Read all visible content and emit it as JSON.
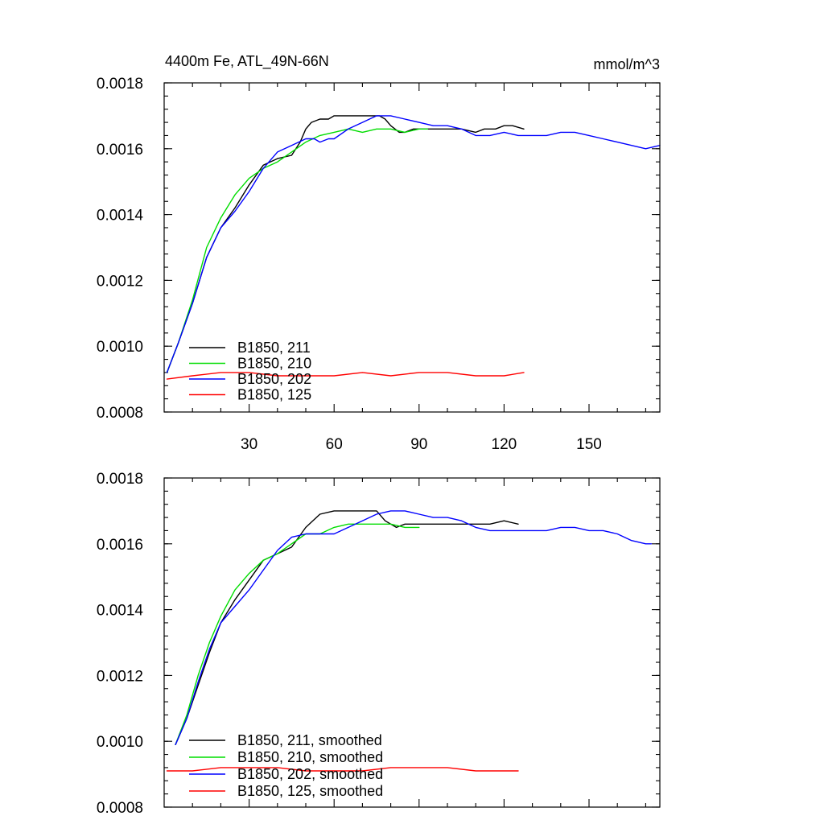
{
  "chart_data": [
    {
      "type": "line",
      "title_left": "4400m Fe, ATL_49N-66N",
      "title_right": "mmol/m^3",
      "xlabel": "",
      "ylabel": "",
      "xlim": [
        0,
        175
      ],
      "ylim": [
        0.0008,
        0.0018
      ],
      "x_ticks": [
        30,
        60,
        90,
        120,
        150
      ],
      "x_tick_labels": [
        "30",
        "60",
        "90",
        "120",
        "150"
      ],
      "y_ticks": [
        0.0008,
        0.001,
        0.0012,
        0.0014,
        0.0016,
        0.0018
      ],
      "y_tick_labels": [
        "0.0008",
        "0.0010",
        "0.0012",
        "0.0014",
        "0.0016",
        "0.0018"
      ],
      "grid": false,
      "legend_position": "bottom-left",
      "series": [
        {
          "name": "B1850, 211",
          "color": "#000000",
          "x": [
            1,
            5,
            10,
            15,
            20,
            25,
            30,
            35,
            40,
            45,
            48,
            50,
            52,
            55,
            58,
            60,
            63,
            66,
            70,
            73,
            76,
            78,
            80,
            83,
            85,
            88,
            90,
            95,
            100,
            105,
            110,
            113,
            117,
            120,
            123,
            127
          ],
          "y": [
            0.00092,
            0.00101,
            0.00113,
            0.00127,
            0.00136,
            0.00142,
            0.00149,
            0.00155,
            0.00157,
            0.00158,
            0.00162,
            0.00166,
            0.00168,
            0.00169,
            0.00169,
            0.0017,
            0.0017,
            0.0017,
            0.0017,
            0.0017,
            0.0017,
            0.00169,
            0.00167,
            0.00165,
            0.00165,
            0.00166,
            0.00166,
            0.00166,
            0.00166,
            0.00166,
            0.00165,
            0.00166,
            0.00166,
            0.00167,
            0.00167,
            0.00166
          ]
        },
        {
          "name": "B1850, 210",
          "color": "#00dd00",
          "x": [
            1,
            5,
            10,
            15,
            20,
            25,
            30,
            35,
            40,
            45,
            50,
            55,
            60,
            65,
            70,
            75,
            80,
            85,
            90,
            93
          ],
          "y": [
            0.00092,
            0.00101,
            0.00114,
            0.0013,
            0.00139,
            0.00146,
            0.00151,
            0.00154,
            0.00156,
            0.00159,
            0.00162,
            0.00164,
            0.00165,
            0.00166,
            0.00165,
            0.00166,
            0.00166,
            0.00165,
            0.00166,
            0.00166
          ]
        },
        {
          "name": "B1850, 202",
          "color": "#0000ff",
          "x": [
            1,
            5,
            10,
            15,
            20,
            25,
            30,
            35,
            40,
            45,
            50,
            53,
            55,
            58,
            60,
            65,
            70,
            75,
            78,
            80,
            85,
            90,
            95,
            100,
            105,
            110,
            115,
            120,
            125,
            130,
            135,
            140,
            145,
            150,
            155,
            160,
            165,
            170,
            175
          ],
          "y": [
            0.00092,
            0.00101,
            0.00113,
            0.00127,
            0.00136,
            0.00141,
            0.00147,
            0.00154,
            0.00159,
            0.00161,
            0.00163,
            0.00163,
            0.00162,
            0.00163,
            0.00163,
            0.00166,
            0.00168,
            0.0017,
            0.0017,
            0.0017,
            0.00169,
            0.00168,
            0.00167,
            0.00167,
            0.00166,
            0.00164,
            0.00164,
            0.00165,
            0.00164,
            0.00164,
            0.00164,
            0.00165,
            0.00165,
            0.00164,
            0.00163,
            0.00162,
            0.00161,
            0.0016,
            0.00161
          ]
        },
        {
          "name": "B1850, 125",
          "color": "#ff0000",
          "x": [
            1,
            10,
            20,
            30,
            40,
            50,
            60,
            70,
            80,
            90,
            100,
            110,
            120,
            127
          ],
          "y": [
            0.0009,
            0.00091,
            0.00092,
            0.00092,
            0.00091,
            0.00091,
            0.00091,
            0.00092,
            0.00091,
            0.00092,
            0.00092,
            0.00091,
            0.00091,
            0.00092
          ]
        }
      ]
    },
    {
      "type": "line",
      "xlabel": "",
      "ylabel": "",
      "xlim": [
        0,
        175
      ],
      "ylim": [
        0.0008,
        0.0018
      ],
      "x_ticks": [
        30,
        60,
        90,
        120,
        150
      ],
      "y_ticks": [
        0.0008,
        0.001,
        0.0012,
        0.0014,
        0.0016,
        0.0018
      ],
      "y_tick_labels": [
        "0.0008",
        "0.0010",
        "0.0012",
        "0.0014",
        "0.0016",
        "0.0018"
      ],
      "grid": false,
      "legend_position": "bottom-left",
      "series": [
        {
          "name": "B1850, 211, smoothed",
          "color": "#000000",
          "x": [
            4,
            8,
            12,
            16,
            20,
            25,
            30,
            35,
            40,
            45,
            50,
            55,
            60,
            65,
            70,
            75,
            78,
            82,
            85,
            90,
            95,
            100,
            105,
            110,
            115,
            120,
            125
          ],
          "y": [
            0.00099,
            0.00107,
            0.00117,
            0.00127,
            0.00136,
            0.00143,
            0.00149,
            0.00155,
            0.00157,
            0.00159,
            0.00165,
            0.00169,
            0.0017,
            0.0017,
            0.0017,
            0.0017,
            0.00167,
            0.00165,
            0.00166,
            0.00166,
            0.00166,
            0.00166,
            0.00166,
            0.00166,
            0.00166,
            0.00167,
            0.00166
          ]
        },
        {
          "name": "B1850, 210, smoothed",
          "color": "#00dd00",
          "x": [
            4,
            8,
            12,
            16,
            20,
            25,
            30,
            35,
            40,
            45,
            50,
            55,
            60,
            65,
            70,
            75,
            80,
            85,
            90
          ],
          "y": [
            0.00099,
            0.00108,
            0.0012,
            0.0013,
            0.00138,
            0.00146,
            0.00151,
            0.00155,
            0.00157,
            0.0016,
            0.00163,
            0.00163,
            0.00165,
            0.00166,
            0.00166,
            0.00166,
            0.00166,
            0.00165,
            0.00165
          ]
        },
        {
          "name": "B1850, 202, smoothed",
          "color": "#0000ff",
          "x": [
            4,
            8,
            12,
            16,
            20,
            25,
            30,
            35,
            40,
            45,
            50,
            55,
            60,
            65,
            70,
            75,
            80,
            85,
            90,
            95,
            100,
            105,
            110,
            115,
            120,
            125,
            130,
            135,
            140,
            145,
            150,
            155,
            160,
            165,
            170,
            172
          ],
          "y": [
            0.00099,
            0.00107,
            0.00118,
            0.00128,
            0.00136,
            0.00141,
            0.00146,
            0.00152,
            0.00158,
            0.00162,
            0.00163,
            0.00163,
            0.00163,
            0.00165,
            0.00167,
            0.00169,
            0.0017,
            0.0017,
            0.00169,
            0.00168,
            0.00168,
            0.00167,
            0.00165,
            0.00164,
            0.00164,
            0.00164,
            0.00164,
            0.00164,
            0.00165,
            0.00165,
            0.00164,
            0.00164,
            0.00163,
            0.00161,
            0.0016,
            0.0016
          ]
        },
        {
          "name": "B1850, 125, smoothed",
          "color": "#ff0000",
          "x": [
            1,
            10,
            20,
            30,
            40,
            50,
            60,
            70,
            80,
            90,
            95,
            100,
            110,
            120,
            125
          ],
          "y": [
            0.00091,
            0.00091,
            0.00092,
            0.00092,
            0.00092,
            0.00091,
            0.00091,
            0.00091,
            0.00092,
            0.00092,
            0.00092,
            0.00092,
            0.00091,
            0.00091,
            0.00091
          ]
        }
      ]
    }
  ]
}
